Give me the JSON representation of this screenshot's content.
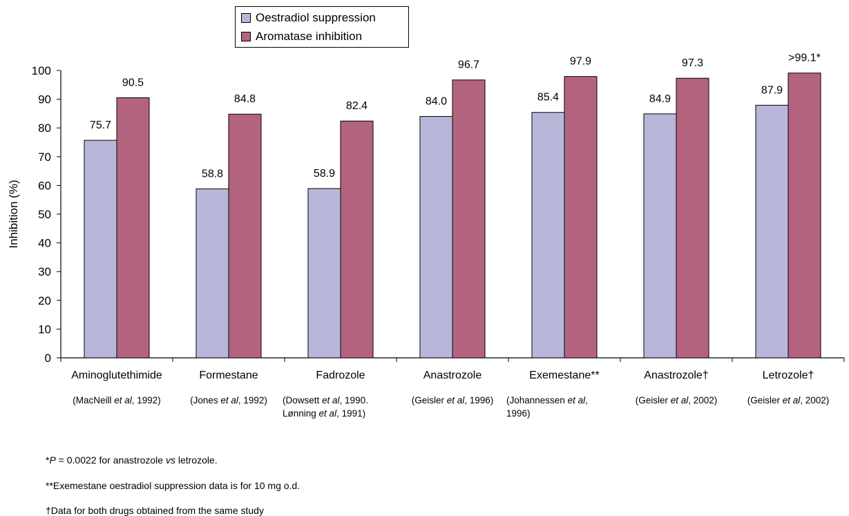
{
  "chart_data": {
    "type": "bar",
    "title": "",
    "xlabel": "",
    "ylabel": "Inhibition (%)",
    "ylim": [
      0,
      100
    ],
    "yticks": [
      "0",
      "10",
      "20",
      "30",
      "40",
      "50",
      "60",
      "70",
      "80",
      "90",
      "100"
    ],
    "grid": false,
    "legend_position": "top-center",
    "categories": [
      "Aminoglutethimide",
      "Formestane",
      "Fadrozole",
      "Anastrozole",
      "Exemestane**",
      "Anastrozole†",
      "Letrozole†"
    ],
    "references": [
      [
        "(MacNeill ",
        "et al",
        ", 1992)"
      ],
      [
        "(Jones ",
        "et al",
        ", 1992)"
      ],
      [
        "(Dowsett ",
        "et al",
        ", 1990.",
        "Lønning ",
        "et al",
        ", 1991)"
      ],
      [
        "(Geisler ",
        "et al",
        ", 1996)"
      ],
      [
        "(Johannessen ",
        "et al",
        ",",
        "1996)"
      ],
      [
        "(Geisler ",
        "et al",
        ", 2002)"
      ],
      [
        "(Geisler ",
        "et al",
        ", 2002)"
      ]
    ],
    "series": [
      {
        "name": "Oestradiol suppression",
        "color": "#b7b7d9",
        "values": [
          75.7,
          58.8,
          58.9,
          84.0,
          85.4,
          84.9,
          87.9
        ],
        "labels": [
          "75.7",
          "58.8",
          "58.9",
          "84.0",
          "85.4",
          "84.9",
          "87.9"
        ]
      },
      {
        "name": "Aromatase inhibition",
        "color": "#b4637e",
        "values": [
          90.5,
          84.8,
          82.4,
          96.7,
          97.9,
          97.3,
          99.1
        ],
        "labels": [
          "90.5",
          "84.8",
          "82.4",
          "96.7",
          "97.9",
          "97.3",
          ">99.1*"
        ]
      }
    ],
    "footnotes": [
      {
        "prefix": "*",
        "italic": "P",
        "suffix": " = 0.0022 for anastrozole ",
        "italic2": "vs",
        "suffix2": " letrozole."
      },
      {
        "prefix": "**Exemestane oestradiol suppression data is for 10 mg o.d.",
        "italic": "",
        "suffix": "",
        "italic2": "",
        "suffix2": ""
      },
      {
        "prefix": "†Data for both drugs obtained from the same study",
        "italic": "",
        "suffix": "",
        "italic2": "",
        "suffix2": ""
      }
    ]
  }
}
